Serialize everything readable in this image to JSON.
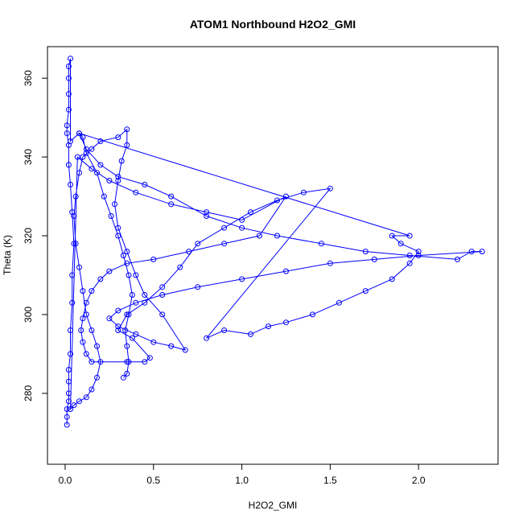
{
  "chart_data": {
    "type": "scatter",
    "title": "ATOM1 Northbound H2O2_GMI",
    "xlabel": "H2O2_GMI",
    "ylabel": "Theta (K)",
    "xlim": [
      -0.1,
      2.45
    ],
    "ylim": [
      262,
      368
    ],
    "xticks": [
      0.0,
      0.5,
      1.0,
      1.5,
      2.0
    ],
    "xtick_labels": [
      "0.0",
      "0.5",
      "1.0",
      "1.5",
      "2.0"
    ],
    "yticks": [
      280,
      300,
      320,
      340,
      360
    ],
    "ytick_labels": [
      "280",
      "300",
      "320",
      "340",
      "360"
    ],
    "grid": false,
    "legend": "none",
    "series_color": "#0000ff",
    "series": [
      {
        "style": "line+points",
        "points": [
          [
            0.01,
            272
          ],
          [
            0.01,
            274
          ],
          [
            0.01,
            276
          ],
          [
            0.02,
            278
          ],
          [
            0.02,
            280
          ],
          [
            0.02,
            283
          ],
          [
            0.02,
            286
          ],
          [
            0.03,
            290
          ],
          [
            0.03,
            296
          ],
          [
            0.04,
            303
          ],
          [
            0.04,
            310
          ],
          [
            0.05,
            318
          ],
          [
            0.04,
            326
          ],
          [
            0.03,
            333
          ],
          [
            0.02,
            338
          ],
          [
            0.02,
            343
          ],
          [
            0.01,
            346
          ],
          [
            0.01,
            348
          ],
          [
            0.02,
            352
          ],
          [
            0.02,
            356
          ],
          [
            0.02,
            360
          ],
          [
            0.02,
            363
          ],
          [
            0.03,
            365
          ],
          [
            0.03,
            344
          ],
          [
            0.08,
            346
          ],
          [
            0.12,
            342
          ],
          [
            0.2,
            338
          ],
          [
            0.3,
            335
          ],
          [
            0.45,
            333
          ],
          [
            0.6,
            330
          ],
          [
            0.8,
            325
          ],
          [
            1.0,
            322
          ],
          [
            1.2,
            320
          ],
          [
            1.45,
            318
          ],
          [
            1.7,
            316
          ],
          [
            1.95,
            315
          ],
          [
            2.22,
            314
          ],
          [
            2.3,
            316
          ],
          [
            2.36,
            316
          ],
          [
            2.0,
            315
          ],
          [
            1.75,
            314
          ],
          [
            1.5,
            313
          ],
          [
            1.25,
            311
          ],
          [
            1.0,
            309
          ],
          [
            0.75,
            307
          ],
          [
            0.55,
            305
          ],
          [
            0.4,
            303
          ],
          [
            0.3,
            301
          ],
          [
            0.25,
            299
          ],
          [
            0.3,
            297
          ],
          [
            0.4,
            295
          ],
          [
            0.5,
            293
          ],
          [
            0.6,
            292
          ],
          [
            0.68,
            291
          ],
          [
            0.55,
            300
          ],
          [
            0.45,
            305
          ],
          [
            0.4,
            310
          ],
          [
            0.35,
            316
          ],
          [
            0.3,
            322
          ],
          [
            0.28,
            328
          ],
          [
            0.3,
            334
          ],
          [
            0.32,
            339
          ],
          [
            0.35,
            343
          ],
          [
            0.35,
            347
          ],
          [
            0.3,
            345
          ],
          [
            0.2,
            344
          ],
          [
            0.15,
            342
          ],
          [
            0.1,
            340
          ],
          [
            0.08,
            336
          ],
          [
            0.06,
            330
          ],
          [
            0.05,
            325
          ],
          [
            0.06,
            318
          ],
          [
            0.08,
            312
          ],
          [
            0.1,
            306
          ],
          [
            0.12,
            300
          ],
          [
            0.15,
            296
          ],
          [
            0.18,
            292
          ],
          [
            0.2,
            288
          ],
          [
            0.18,
            284
          ],
          [
            0.15,
            281
          ],
          [
            0.12,
            279
          ],
          [
            0.08,
            278
          ],
          [
            0.05,
            277
          ],
          [
            0.03,
            276
          ],
          [
            0.07,
            340
          ],
          [
            0.15,
            337
          ],
          [
            0.25,
            334
          ],
          [
            0.4,
            331
          ],
          [
            0.6,
            328
          ],
          [
            0.8,
            326
          ],
          [
            1.0,
            324
          ],
          [
            1.25,
            330
          ],
          [
            1.1,
            320
          ],
          [
            0.9,
            318
          ],
          [
            0.7,
            316
          ],
          [
            0.5,
            314
          ],
          [
            0.35,
            313
          ],
          [
            0.25,
            311
          ],
          [
            0.2,
            309
          ],
          [
            0.15,
            306
          ],
          [
            0.12,
            303
          ],
          [
            0.1,
            299
          ],
          [
            0.09,
            296
          ],
          [
            0.1,
            293
          ],
          [
            0.12,
            290
          ],
          [
            0.15,
            288
          ],
          [
            0.35,
            288
          ],
          [
            0.45,
            288
          ],
          [
            0.48,
            289
          ],
          [
            0.38,
            294
          ],
          [
            0.3,
            296
          ],
          [
            0.35,
            300
          ],
          [
            0.45,
            303
          ],
          [
            0.55,
            307
          ],
          [
            0.65,
            312
          ],
          [
            0.75,
            318
          ],
          [
            0.9,
            322
          ],
          [
            1.05,
            326
          ],
          [
            1.2,
            329
          ],
          [
            1.35,
            331
          ],
          [
            1.5,
            332
          ],
          [
            0.8,
            294
          ],
          [
            0.9,
            296
          ],
          [
            1.05,
            295
          ],
          [
            1.15,
            297
          ],
          [
            1.25,
            298
          ],
          [
            1.4,
            300
          ],
          [
            1.55,
            303
          ],
          [
            1.7,
            306
          ],
          [
            1.85,
            309
          ],
          [
            1.95,
            313
          ],
          [
            2.0,
            316
          ],
          [
            1.9,
            318
          ],
          [
            1.85,
            320
          ],
          [
            1.95,
            320
          ],
          [
            0.08,
            346
          ],
          [
            0.1,
            345
          ],
          [
            0.12,
            341
          ],
          [
            0.18,
            336
          ],
          [
            0.22,
            330
          ],
          [
            0.26,
            325
          ],
          [
            0.3,
            320
          ],
          [
            0.33,
            315
          ],
          [
            0.36,
            310
          ],
          [
            0.38,
            305
          ],
          [
            0.36,
            300
          ],
          [
            0.34,
            296
          ],
          [
            0.35,
            292
          ],
          [
            0.36,
            288
          ],
          [
            0.35,
            285
          ],
          [
            0.33,
            284
          ]
        ]
      }
    ]
  }
}
